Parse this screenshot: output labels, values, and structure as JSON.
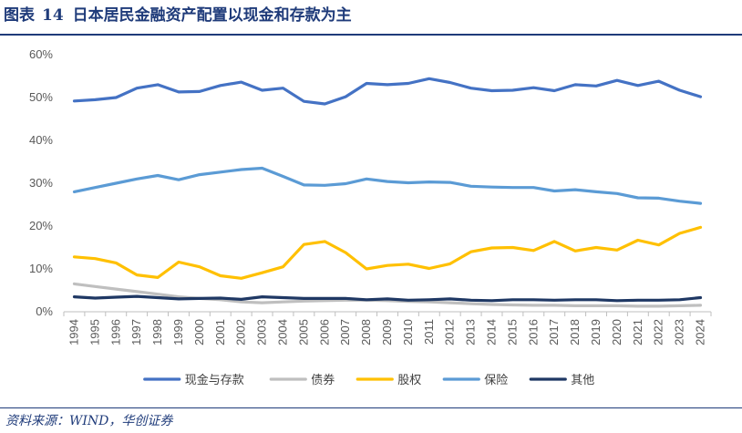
{
  "figure": {
    "label": "图表",
    "number": "14",
    "title": "日本居民金融资产配置以现金和存款为主",
    "source": "资料来源：WIND，华创证券"
  },
  "chart_data": {
    "type": "line",
    "title": "日本居民金融资产配置以现金和存款为主",
    "xlabel": "",
    "ylabel": "",
    "ylim": [
      0,
      60
    ],
    "yticks": [
      "0%",
      "10%",
      "20%",
      "30%",
      "40%",
      "50%",
      "60%"
    ],
    "grid": false,
    "legend_position": "bottom",
    "x": [
      "1994",
      "1995",
      "1996",
      "1997",
      "1998",
      "1999",
      "2000",
      "2001",
      "2002",
      "2003",
      "2004",
      "2005",
      "2006",
      "2007",
      "2008",
      "2009",
      "2010",
      "2011",
      "2012",
      "2013",
      "2014",
      "2015",
      "2016",
      "2017",
      "2018",
      "2019",
      "2020",
      "2021",
      "2022",
      "2023",
      "2024"
    ],
    "series": [
      {
        "name": "现金与存款",
        "color": "#4472c4",
        "values": [
          49.2,
          49.5,
          50.0,
          52.2,
          53.0,
          51.3,
          51.4,
          52.8,
          53.6,
          51.7,
          52.2,
          49.1,
          48.5,
          50.2,
          53.3,
          53.0,
          53.3,
          54.4,
          53.5,
          52.2,
          51.6,
          51.7,
          52.3,
          51.6,
          53.0,
          52.7,
          54.0,
          52.8,
          53.8,
          51.7,
          50.2
        ]
      },
      {
        "name": "债券",
        "color": "#bfbfbf",
        "values": [
          6.5,
          5.9,
          5.3,
          4.7,
          4.1,
          3.5,
          3.1,
          2.8,
          2.3,
          2.1,
          2.3,
          2.5,
          2.6,
          2.7,
          2.7,
          2.6,
          2.4,
          2.3,
          2.1,
          1.9,
          1.7,
          1.6,
          1.5,
          1.5,
          1.4,
          1.4,
          1.4,
          1.3,
          1.3,
          1.4,
          1.5
        ]
      },
      {
        "name": "股权",
        "color": "#ffc000",
        "values": [
          12.8,
          12.4,
          11.4,
          8.6,
          8.0,
          11.6,
          10.5,
          8.4,
          7.8,
          9.1,
          10.5,
          15.7,
          16.4,
          13.8,
          10.0,
          10.8,
          11.1,
          10.1,
          11.2,
          14.0,
          14.9,
          15.0,
          14.3,
          16.4,
          14.2,
          15.0,
          14.4,
          16.7,
          15.6,
          18.3,
          19.7
        ]
      },
      {
        "name": "保险",
        "color": "#5b9bd5",
        "values": [
          28.0,
          29.0,
          30.0,
          31.0,
          31.8,
          30.8,
          32.0,
          32.6,
          33.2,
          33.5,
          31.6,
          29.6,
          29.5,
          29.9,
          31.0,
          30.4,
          30.1,
          30.3,
          30.2,
          29.3,
          29.1,
          29.0,
          29.0,
          28.2,
          28.5,
          28.0,
          27.6,
          26.6,
          26.5,
          25.8,
          25.3
        ]
      },
      {
        "name": "其他",
        "color": "#1f3864",
        "values": [
          3.5,
          3.2,
          3.4,
          3.6,
          3.3,
          3.0,
          3.1,
          3.2,
          2.9,
          3.5,
          3.3,
          3.1,
          3.1,
          3.1,
          2.8,
          3.0,
          2.7,
          2.8,
          3.0,
          2.7,
          2.6,
          2.8,
          2.8,
          2.7,
          2.8,
          2.8,
          2.6,
          2.7,
          2.7,
          2.8,
          3.3
        ]
      }
    ]
  }
}
